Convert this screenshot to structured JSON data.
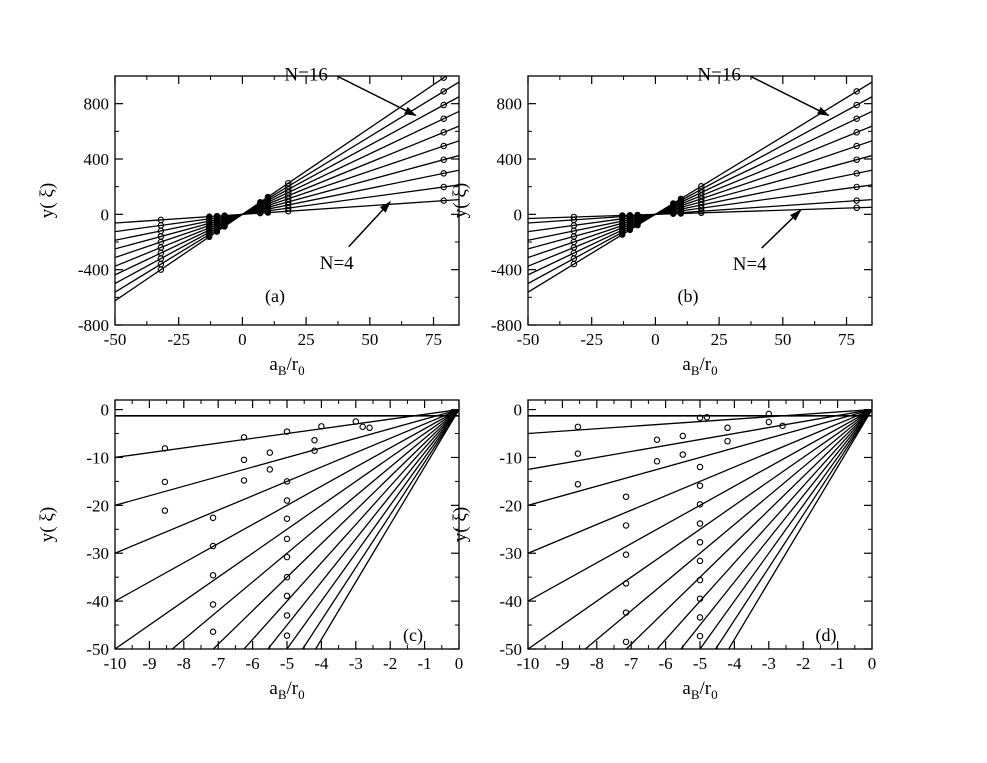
{
  "figure": {
    "xlabel_main": "a",
    "xlabel_sub1": "B",
    "xlabel_mid": "/r",
    "xlabel_sub2": "0",
    "ylabel": "y( ξ)"
  },
  "chart_data": [
    {
      "type": "line",
      "panel_label": "(a)",
      "xlim": [
        -50,
        85
      ],
      "ylim": [
        -800,
        1000
      ],
      "xticks": [
        -50,
        -25,
        0,
        25,
        50,
        75
      ],
      "yticks": [
        -800,
        -400,
        0,
        400,
        800
      ],
      "series": [
        {
          "slope": 1.25,
          "markers": [
            [
              79,
              99
            ],
            [
              18,
              23
            ],
            [
              -32,
              -40
            ]
          ]
        },
        {
          "slope": 2.5,
          "markers": [
            [
              79,
              198
            ],
            [
              18,
              45
            ],
            [
              -32,
              -80
            ]
          ]
        },
        {
          "slope": 3.75,
          "markers": [
            [
              79,
              296
            ],
            [
              18,
              68
            ],
            [
              -32,
              -120
            ]
          ]
        },
        {
          "slope": 5.0,
          "markers": [
            [
              79,
              395
            ],
            [
              18,
              90
            ],
            [
              -32,
              -160
            ]
          ]
        },
        {
          "slope": 6.25,
          "markers": [
            [
              79,
              494
            ],
            [
              18,
              113
            ],
            [
              -32,
              -200
            ]
          ]
        },
        {
          "slope": 7.5,
          "markers": [
            [
              79,
              593
            ],
            [
              18,
              135
            ],
            [
              -32,
              -240
            ]
          ]
        },
        {
          "slope": 8.75,
          "markers": [
            [
              79,
              691
            ],
            [
              18,
              158
            ],
            [
              -32,
              -280
            ]
          ]
        },
        {
          "slope": 10.0,
          "markers": [
            [
              79,
              790
            ],
            [
              18,
              180
            ],
            [
              -32,
              -320
            ]
          ]
        },
        {
          "slope": 11.25,
          "markers": [
            [
              79,
              889
            ],
            [
              18,
              203
            ],
            [
              -32,
              -360
            ]
          ]
        },
        {
          "slope": 12.5,
          "markers": [
            [
              79,
              988
            ],
            [
              18,
              225
            ],
            [
              -32,
              -400
            ]
          ]
        }
      ],
      "annotations": [
        {
          "text": "N=16",
          "text_at": [
            25,
            1010
          ],
          "arrow_to": [
            68,
            715
          ]
        },
        {
          "text": "N=4",
          "text_at": [
            37,
            -350
          ],
          "arrow_to": [
            58,
            90
          ]
        }
      ]
    },
    {
      "type": "line",
      "panel_label": "(b)",
      "xlim": [
        -50,
        85
      ],
      "ylim": [
        -800,
        1000
      ],
      "xticks": [
        -50,
        -25,
        0,
        25,
        50,
        75
      ],
      "yticks": [
        -800,
        -400,
        0,
        400,
        800
      ],
      "series": [
        {
          "slope": 0.6,
          "markers": [
            [
              79,
              47
            ],
            [
              18,
              11
            ],
            [
              -32,
              -19
            ]
          ]
        },
        {
          "slope": 1.25,
          "markers": [
            [
              79,
              99
            ],
            [
              18,
              23
            ],
            [
              -32,
              -40
            ]
          ]
        },
        {
          "slope": 2.5,
          "markers": [
            [
              79,
              198
            ],
            [
              18,
              45
            ],
            [
              -32,
              -80
            ]
          ]
        },
        {
          "slope": 3.75,
          "markers": [
            [
              79,
              296
            ],
            [
              18,
              68
            ],
            [
              -32,
              -120
            ]
          ]
        },
        {
          "slope": 5.0,
          "markers": [
            [
              79,
              395
            ],
            [
              18,
              90
            ],
            [
              -32,
              -160
            ]
          ]
        },
        {
          "slope": 6.25,
          "markers": [
            [
              79,
              494
            ],
            [
              18,
              113
            ],
            [
              -32,
              -200
            ]
          ]
        },
        {
          "slope": 7.5,
          "markers": [
            [
              79,
              593
            ],
            [
              18,
              135
            ],
            [
              -32,
              -240
            ]
          ]
        },
        {
          "slope": 8.75,
          "markers": [
            [
              79,
              691
            ],
            [
              18,
              158
            ],
            [
              -32,
              -280
            ]
          ]
        },
        {
          "slope": 10.0,
          "markers": [
            [
              79,
              790
            ],
            [
              18,
              180
            ],
            [
              -32,
              -320
            ]
          ]
        },
        {
          "slope": 11.25,
          "markers": [
            [
              79,
              889
            ],
            [
              18,
              203
            ],
            [
              -32,
              -360
            ]
          ]
        }
      ],
      "annotations": [
        {
          "text": "N=16",
          "text_at": [
            25,
            1010
          ],
          "arrow_to": [
            68,
            715
          ]
        },
        {
          "text": "N=4",
          "text_at": [
            37,
            -360
          ],
          "arrow_to": [
            57,
            30
          ]
        }
      ]
    },
    {
      "type": "line",
      "panel_label": "(c)",
      "xlim": [
        -10,
        0
      ],
      "ylim": [
        -50,
        2
      ],
      "xticks": [
        -10,
        -9,
        -8,
        -7,
        -6,
        -5,
        -4,
        -3,
        -2,
        -1,
        0
      ],
      "yticks": [
        -50,
        -40,
        -30,
        -20,
        -10,
        0
      ],
      "hline_y": -1.3,
      "series": [
        {
          "slope": 1.0,
          "markers": [
            [
              -8.55,
              -8.1
            ],
            [
              -6.25,
              -5.8
            ],
            [
              -5.0,
              -4.6
            ],
            [
              -4.0,
              -3.5
            ],
            [
              -3.0,
              -2.5
            ]
          ]
        },
        {
          "slope": 2.0,
          "markers": [
            [
              -8.55,
              -15.1
            ],
            [
              -6.25,
              -10.5
            ],
            [
              -5.5,
              -9.0
            ],
            [
              -4.2,
              -6.4
            ],
            [
              -2.8,
              -3.6
            ]
          ]
        },
        {
          "slope": 3.0,
          "markers": [
            [
              -8.55,
              -21.1
            ],
            [
              -6.25,
              -14.8
            ],
            [
              -5.5,
              -12.5
            ],
            [
              -4.2,
              -8.6
            ],
            [
              -2.6,
              -3.8
            ]
          ]
        },
        {
          "slope": 4.0,
          "markers": [
            [
              -7.15,
              -22.6
            ],
            [
              -5.0,
              -15.0
            ]
          ]
        },
        {
          "slope": 5.0,
          "markers": [
            [
              -7.15,
              -28.5
            ],
            [
              -5.0,
              -19.0
            ]
          ]
        },
        {
          "slope": 6.0,
          "markers": [
            [
              -7.15,
              -34.6
            ],
            [
              -5.0,
              -22.8
            ]
          ]
        },
        {
          "slope": 7.0,
          "markers": [
            [
              -7.15,
              -40.7
            ],
            [
              -5.0,
              -27.0
            ]
          ]
        },
        {
          "slope": 8.0,
          "markers": [
            [
              -7.15,
              -46.4
            ],
            [
              -5.0,
              -30.8
            ]
          ]
        },
        {
          "slope": 9.0,
          "markers": [
            [
              -5.0,
              -35.0
            ]
          ]
        },
        {
          "slope": 10.0,
          "markers": [
            [
              -5.0,
              -38.9
            ]
          ]
        },
        {
          "slope": 11.0,
          "markers": [
            [
              -5.0,
              -43.0
            ]
          ]
        },
        {
          "slope": 12.0,
          "markers": [
            [
              -5.0,
              -47.2
            ]
          ]
        }
      ]
    },
    {
      "type": "line",
      "panel_label": "(d)",
      "xlim": [
        -10,
        0
      ],
      "ylim": [
        -50,
        2
      ],
      "xticks": [
        -10,
        -9,
        -8,
        -7,
        -6,
        -5,
        -4,
        -3,
        -2,
        -1,
        0
      ],
      "yticks": [
        -50,
        -40,
        -30,
        -20,
        -10,
        0
      ],
      "hline_y": -1.3,
      "series": [
        {
          "slope": 0.5,
          "markers": [
            [
              -8.55,
              -3.6
            ],
            [
              -5.0,
              -1.7
            ],
            [
              -4.8,
              -1.6
            ],
            [
              -3.0,
              -0.9
            ]
          ]
        },
        {
          "slope": 1.25,
          "markers": [
            [
              -8.55,
              -9.2
            ],
            [
              -6.25,
              -6.3
            ],
            [
              -5.5,
              -5.5
            ],
            [
              -4.2,
              -3.8
            ],
            [
              -3.0,
              -2.6
            ]
          ]
        },
        {
          "slope": 2.0,
          "markers": [
            [
              -8.55,
              -15.6
            ],
            [
              -6.25,
              -10.8
            ],
            [
              -5.5,
              -9.4
            ],
            [
              -4.2,
              -6.6
            ],
            [
              -2.6,
              -3.4
            ]
          ]
        },
        {
          "slope": 3.0,
          "markers": [
            [
              -7.15,
              -18.2
            ],
            [
              -5.0,
              -12.0
            ]
          ]
        },
        {
          "slope": 4.0,
          "markers": [
            [
              -7.15,
              -24.2
            ],
            [
              -5.0,
              -15.9
            ]
          ]
        },
        {
          "slope": 5.0,
          "markers": [
            [
              -7.15,
              -30.3
            ],
            [
              -5.0,
              -19.8
            ]
          ]
        },
        {
          "slope": 6.0,
          "markers": [
            [
              -7.15,
              -36.3
            ],
            [
              -5.0,
              -23.8
            ]
          ]
        },
        {
          "slope": 7.0,
          "markers": [
            [
              -7.15,
              -42.4
            ],
            [
              -5.0,
              -27.7
            ]
          ]
        },
        {
          "slope": 8.0,
          "markers": [
            [
              -7.15,
              -48.5
            ],
            [
              -5.0,
              -31.6
            ]
          ]
        },
        {
          "slope": 9.0,
          "markers": [
            [
              -5.0,
              -35.6
            ]
          ]
        },
        {
          "slope": 10.0,
          "markers": [
            [
              -5.0,
              -39.5
            ]
          ]
        },
        {
          "slope": 11.0,
          "markers": [
            [
              -5.0,
              -43.4
            ]
          ]
        },
        {
          "slope": 12.0,
          "markers": [
            [
              -5.0,
              -47.3
            ]
          ]
        }
      ]
    }
  ]
}
